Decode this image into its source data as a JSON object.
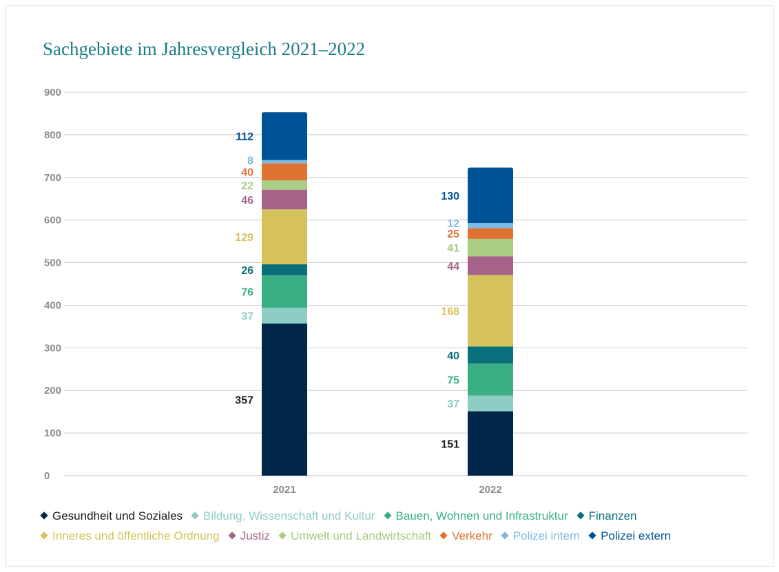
{
  "title": "Sachgebiete im Jahresvergleich 2021–2022",
  "chart_data": {
    "type": "bar",
    "stacked": true,
    "categories": [
      "2021",
      "2022"
    ],
    "ylim": [
      0,
      900
    ],
    "yticks": [
      0,
      100,
      200,
      300,
      400,
      500,
      600,
      700,
      800,
      900
    ],
    "grid": true,
    "legend_position": "bottom",
    "series": [
      {
        "name": "Gesundheit und Soziales",
        "color": "#00264a",
        "text_color": "#1a1a1a",
        "values": [
          357,
          151
        ]
      },
      {
        "name": "Bildung, Wissenschaft und Kultur",
        "color": "#8ecdc3",
        "text_color": "#8ecdc3",
        "values": [
          37,
          37
        ]
      },
      {
        "name": "Bauen, Wohnen und Infrastruktur",
        "color": "#3aaf84",
        "text_color": "#3aaf84",
        "values": [
          76,
          75
        ]
      },
      {
        "name": "Finanzen",
        "color": "#086f7b",
        "text_color": "#086f7b",
        "values": [
          26,
          40
        ]
      },
      {
        "name": "Inneres und öffentliche Ordnung",
        "color": "#d6c25c",
        "text_color": "#d6c25c",
        "values": [
          129,
          168
        ]
      },
      {
        "name": "Justiz",
        "color": "#a5638a",
        "text_color": "#a5638a",
        "values": [
          46,
          44
        ]
      },
      {
        "name": "Umwelt und Landwirtschaft",
        "color": "#a9cd85",
        "text_color": "#a9cd85",
        "values": [
          22,
          41
        ]
      },
      {
        "name": "Verkehr",
        "color": "#e07332",
        "text_color": "#e07332",
        "values": [
          40,
          25
        ]
      },
      {
        "name": "Polizei intern",
        "color": "#7db9e3",
        "text_color": "#7db9e3",
        "values": [
          8,
          12
        ]
      },
      {
        "name": "Polizei extern",
        "color": "#005296",
        "text_color": "#005296",
        "values": [
          112,
          130
        ]
      }
    ]
  }
}
